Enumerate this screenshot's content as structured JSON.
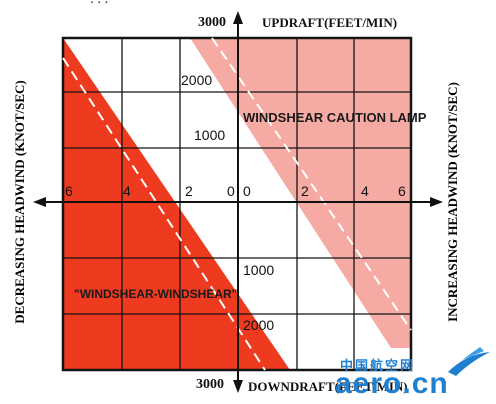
{
  "top_clip_text": "...",
  "axes": {
    "top_value": "3000",
    "top_label": "UPDRAFT(FEET/MIN)",
    "bottom_value": "3000",
    "bottom_label": "DOWNDRAFT(FEET/MIN)",
    "left_label": "DECREASING  HEADWIND  (KNOT/SEC)",
    "right_label": "INCREASING  HEADWIND  (KNOT/SEC)",
    "left_ticks": [
      "6",
      "4",
      "2",
      "0"
    ],
    "right_ticks": [
      "0",
      "2",
      "4",
      "6"
    ],
    "upper_ticks": [
      "2000",
      "1000"
    ],
    "lower_ticks": [
      "1000",
      "2000"
    ]
  },
  "regions": {
    "warning_label": "\"WINDSHEAR-WINDSHEAR\"",
    "caution_label": "WINDSHEAR CAUTION LAMP",
    "warning_color": "#ee3a1f",
    "caution_color": "#f6aaa4"
  },
  "watermark": {
    "cn_text": "中国航空网",
    "logo_text": "aero.cn"
  }
}
